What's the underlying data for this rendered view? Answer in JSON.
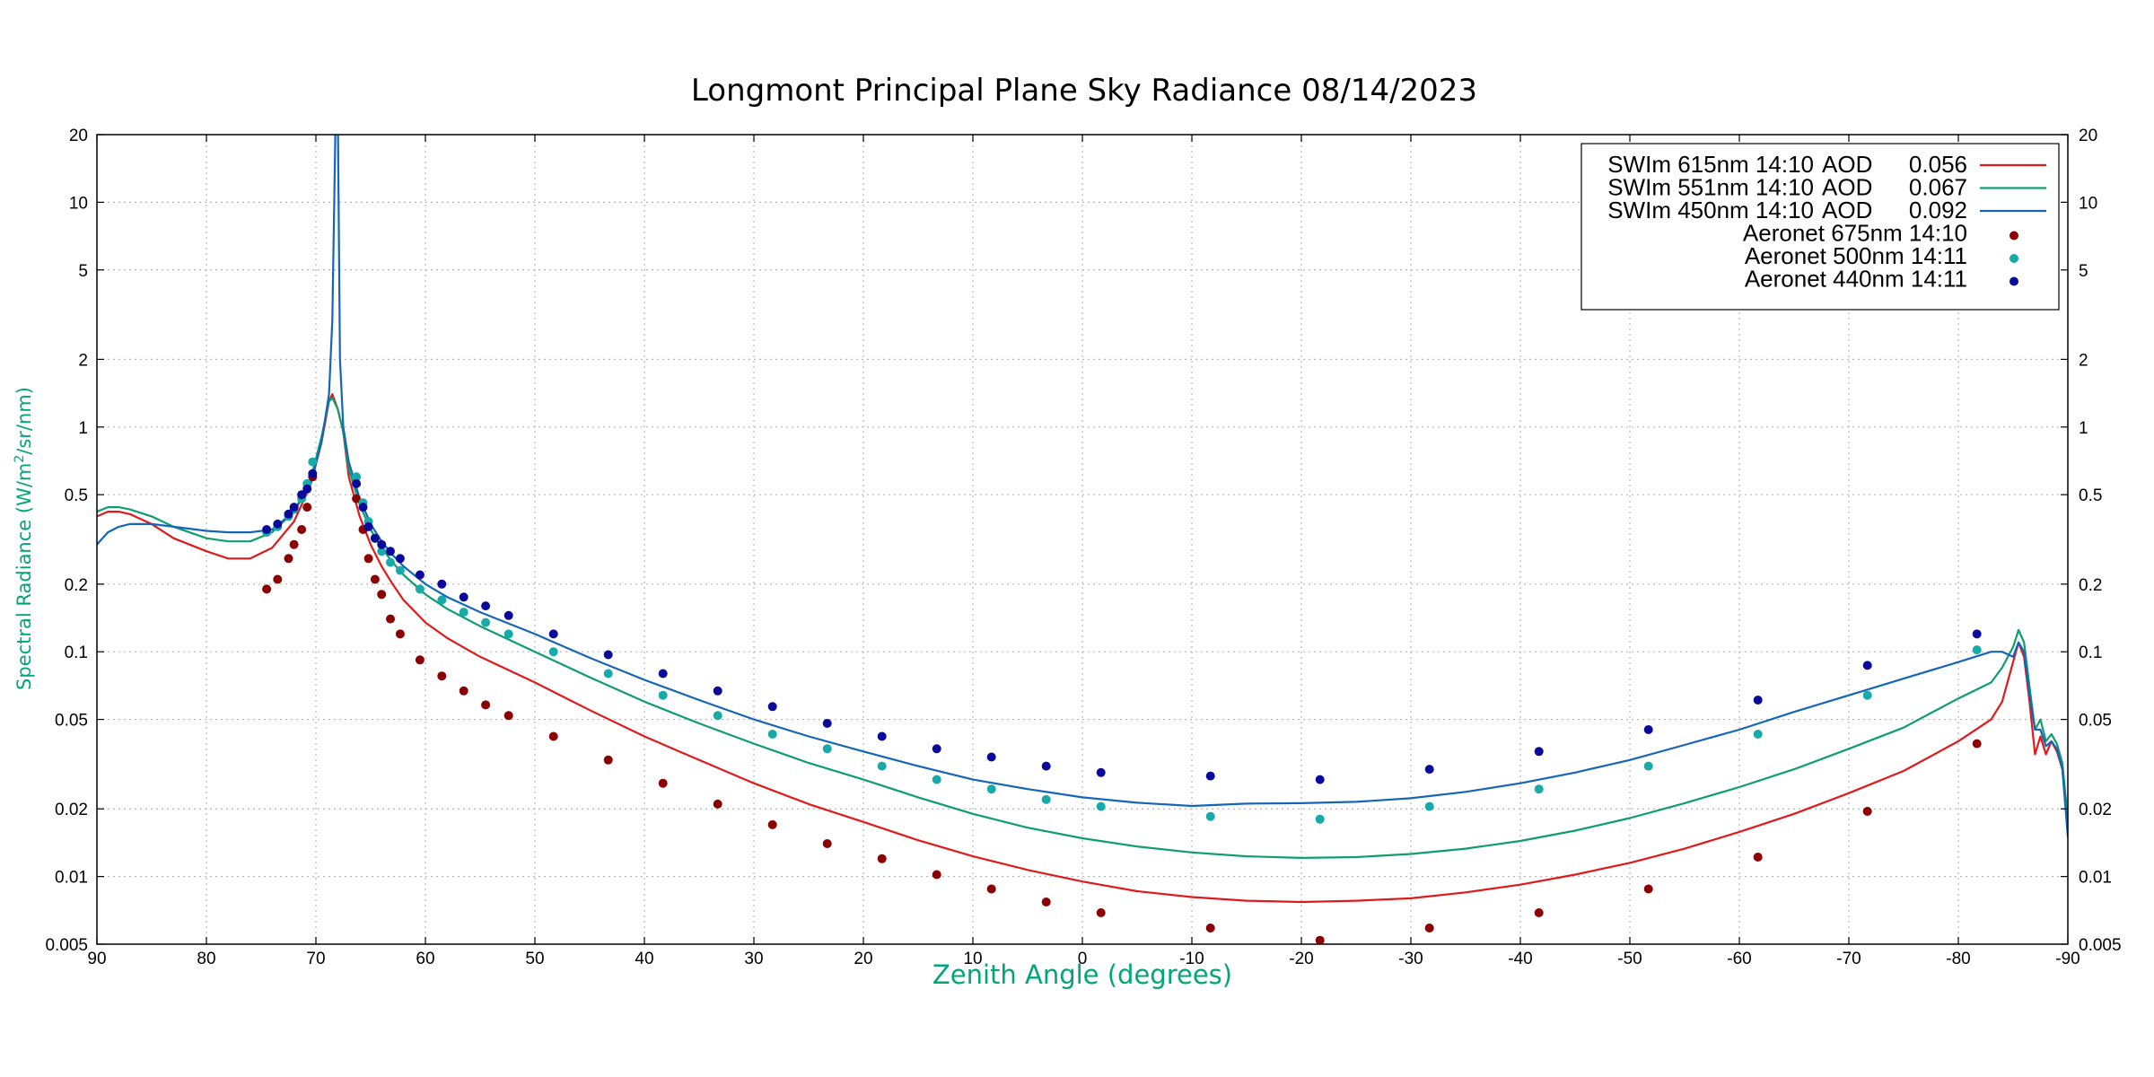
{
  "chart_data": {
    "type": "line",
    "title": "Longmont Principal Plane Sky Radiance 08/14/2023",
    "xlabel": "Zenith Angle (degrees)",
    "ylabel_main": "Spectral Radiance (W/m",
    "ylabel_sup": "2",
    "ylabel_tail": "/sr/nm)",
    "xlim": [
      90,
      -90
    ],
    "ylim": [
      0.005,
      20
    ],
    "yscale": "log",
    "grid": true,
    "legend_position": "top-right",
    "label_color": "#00a67a",
    "x_ticks": [
      90,
      80,
      70,
      60,
      50,
      40,
      30,
      20,
      10,
      0,
      -10,
      -20,
      -30,
      -40,
      -50,
      -60,
      -70,
      -80,
      -90
    ],
    "x_tick_labels": [
      "90",
      "80",
      "70",
      "60",
      "50",
      "40",
      "30",
      "20",
      "10",
      "0",
      "-10",
      "-20",
      "-30",
      "-40",
      "-50",
      "-60",
      "-70",
      "-80",
      "-90"
    ],
    "y_ticks": [
      0.005,
      0.01,
      0.02,
      0.05,
      0.1,
      0.2,
      0.5,
      1,
      2,
      5,
      10,
      20
    ],
    "y_tick_labels": [
      "0.005",
      "0.01",
      "0.02",
      "0.05",
      "0.1",
      "0.2",
      "0.5",
      "1",
      "2",
      "5",
      "10",
      "20"
    ],
    "series": [
      {
        "name": "SWIm 615nm 14:10",
        "aod_label": "AOD",
        "aod": "0.056",
        "kind": "line",
        "color": "#e01a1a",
        "x": [
          90,
          89,
          88,
          87,
          85,
          83,
          80,
          78,
          76,
          74,
          72,
          70.5,
          69.5,
          68.8,
          68.5,
          68.0,
          67.5,
          67,
          66,
          65,
          64,
          63,
          62,
          60,
          58,
          55,
          50,
          45,
          40,
          35,
          30,
          25,
          20,
          15,
          10,
          5,
          0,
          -5,
          -10,
          -15,
          -20,
          -25,
          -30,
          -35,
          -40,
          -45,
          -50,
          -55,
          -60,
          -65,
          -70,
          -75,
          -80,
          -83,
          -84,
          -85,
          -85.5,
          -86,
          -86.5,
          -87,
          -87.5,
          -88,
          -88.5,
          -89,
          -89.5,
          -90
        ],
        "y": [
          0.4,
          0.42,
          0.42,
          0.41,
          0.37,
          0.32,
          0.28,
          0.26,
          0.26,
          0.29,
          0.38,
          0.55,
          0.85,
          1.3,
          1.4,
          1.2,
          0.95,
          0.6,
          0.4,
          0.3,
          0.24,
          0.2,
          0.17,
          0.135,
          0.115,
          0.095,
          0.073,
          0.055,
          0.042,
          0.033,
          0.026,
          0.021,
          0.0175,
          0.0145,
          0.0123,
          0.0107,
          0.0095,
          0.0086,
          0.0081,
          0.0078,
          0.0077,
          0.0078,
          0.008,
          0.0085,
          0.0092,
          0.0102,
          0.0115,
          0.0133,
          0.0158,
          0.019,
          0.0235,
          0.0295,
          0.04,
          0.05,
          0.06,
          0.09,
          0.11,
          0.095,
          0.06,
          0.035,
          0.042,
          0.035,
          0.04,
          0.036,
          0.03,
          0.018
        ]
      },
      {
        "name": "SWIm 551nm 14:10",
        "aod_label": "AOD",
        "aod": "0.067",
        "kind": "line",
        "color": "#0e9e6e",
        "x": [
          90,
          89,
          88,
          87,
          85,
          83,
          80,
          78,
          76,
          74,
          72,
          70.5,
          69.5,
          68.8,
          68.5,
          68.0,
          67.5,
          67,
          66,
          65,
          64,
          63,
          62,
          60,
          58,
          55,
          50,
          45,
          40,
          35,
          30,
          25,
          20,
          15,
          10,
          5,
          0,
          -5,
          -10,
          -15,
          -20,
          -25,
          -30,
          -35,
          -40,
          -45,
          -50,
          -55,
          -60,
          -65,
          -70,
          -75,
          -80,
          -83,
          -84,
          -85,
          -85.5,
          -86,
          -86.5,
          -87,
          -87.5,
          -88,
          -88.5,
          -89,
          -89.5,
          -90
        ],
        "y": [
          0.42,
          0.44,
          0.44,
          0.43,
          0.4,
          0.36,
          0.32,
          0.31,
          0.31,
          0.34,
          0.42,
          0.58,
          0.9,
          1.3,
          1.35,
          1.2,
          0.95,
          0.65,
          0.45,
          0.35,
          0.29,
          0.25,
          0.22,
          0.18,
          0.155,
          0.13,
          0.1,
          0.077,
          0.06,
          0.048,
          0.039,
          0.032,
          0.027,
          0.0225,
          0.019,
          0.0165,
          0.0148,
          0.0136,
          0.0128,
          0.0123,
          0.0121,
          0.0122,
          0.0126,
          0.0133,
          0.0144,
          0.016,
          0.0182,
          0.0212,
          0.025,
          0.03,
          0.037,
          0.046,
          0.062,
          0.073,
          0.085,
          0.105,
          0.125,
          0.11,
          0.07,
          0.045,
          0.05,
          0.04,
          0.043,
          0.039,
          0.032,
          0.018
        ]
      },
      {
        "name": "SWIm 450nm 14:10",
        "aod_label": "AOD",
        "aod": "0.092",
        "kind": "line",
        "color": "#1565b8",
        "x": [
          90,
          89,
          88,
          87,
          85,
          83,
          80,
          78,
          76,
          74,
          72,
          70.5,
          69.5,
          68.8,
          68.5,
          68.2,
          68.0,
          67.8,
          67.5,
          67,
          66,
          65,
          64,
          63,
          62,
          60,
          58,
          55,
          50,
          45,
          40,
          35,
          30,
          25,
          20,
          15,
          10,
          5,
          0,
          -5,
          -10,
          -15,
          -20,
          -25,
          -30,
          -35,
          -40,
          -45,
          -50,
          -55,
          -60,
          -65,
          -70,
          -75,
          -80,
          -83,
          -84,
          -85,
          -85.5,
          -86,
          -86.5,
          -87,
          -87.5,
          -88,
          -88.5,
          -89,
          -89.5,
          -90
        ],
        "y": [
          0.3,
          0.34,
          0.36,
          0.37,
          0.37,
          0.36,
          0.345,
          0.34,
          0.34,
          0.35,
          0.42,
          0.56,
          0.85,
          1.4,
          3.0,
          25,
          25,
          2.0,
          1.0,
          0.7,
          0.48,
          0.37,
          0.31,
          0.27,
          0.24,
          0.2,
          0.175,
          0.15,
          0.12,
          0.094,
          0.075,
          0.061,
          0.05,
          0.042,
          0.036,
          0.031,
          0.027,
          0.0245,
          0.0225,
          0.0213,
          0.0206,
          0.0211,
          0.0212,
          0.0215,
          0.0223,
          0.0238,
          0.026,
          0.029,
          0.033,
          0.0385,
          0.045,
          0.054,
          0.064,
          0.076,
          0.09,
          0.1,
          0.1,
          0.095,
          0.11,
          0.1,
          0.065,
          0.045,
          0.045,
          0.038,
          0.04,
          0.037,
          0.03,
          0.015
        ]
      },
      {
        "name": "Aeronet 675nm 14:10",
        "kind": "scatter",
        "color": "#8b0000",
        "x": [
          74.5,
          73.5,
          72.5,
          72,
          71.3,
          70.8,
          70.3,
          66.3,
          65.7,
          65.2,
          64.6,
          64,
          63.2,
          62.3,
          60.5,
          58.5,
          56.5,
          54.5,
          52.4,
          48.3,
          43.3,
          38.3,
          33.3,
          28.3,
          23.3,
          18.3,
          13.3,
          8.3,
          3.3,
          -1.7,
          -11.7,
          -21.7,
          -31.7,
          -41.7,
          -51.7,
          -61.7,
          -71.7,
          -81.7
        ],
        "y": [
          0.19,
          0.21,
          0.26,
          0.3,
          0.35,
          0.44,
          0.6,
          0.48,
          0.35,
          0.26,
          0.21,
          0.18,
          0.14,
          0.12,
          0.092,
          0.078,
          0.067,
          0.058,
          0.052,
          0.042,
          0.033,
          0.026,
          0.021,
          0.017,
          0.014,
          0.012,
          0.0102,
          0.0088,
          0.0077,
          0.0069,
          0.0059,
          0.0052,
          0.0059,
          0.0069,
          0.0088,
          0.0122,
          0.0195,
          0.039
        ]
      },
      {
        "name": "Aeronet 500nm 14:11",
        "kind": "scatter",
        "color": "#17aaa8",
        "x": [
          74.5,
          73.5,
          72.5,
          72,
          71.3,
          70.8,
          70.3,
          66.3,
          65.7,
          65.2,
          64.6,
          64,
          63.2,
          62.3,
          60.5,
          58.5,
          56.5,
          54.5,
          52.4,
          48.3,
          43.3,
          38.3,
          33.3,
          28.3,
          23.3,
          18.3,
          13.3,
          8.3,
          3.3,
          -1.7,
          -11.7,
          -21.7,
          -31.7,
          -41.7,
          -51.7,
          -61.7,
          -71.7,
          -81.7
        ],
        "y": [
          0.34,
          0.36,
          0.4,
          0.43,
          0.48,
          0.56,
          0.7,
          0.6,
          0.46,
          0.38,
          0.32,
          0.28,
          0.25,
          0.23,
          0.19,
          0.17,
          0.15,
          0.135,
          0.12,
          0.1,
          0.08,
          0.064,
          0.052,
          0.043,
          0.037,
          0.031,
          0.027,
          0.0245,
          0.022,
          0.0205,
          0.0185,
          0.018,
          0.0205,
          0.0245,
          0.031,
          0.043,
          0.064,
          0.102
        ]
      },
      {
        "name": "Aeronet 440nm 14:11",
        "kind": "scatter",
        "color": "#0a0a9a",
        "x": [
          74.5,
          73.5,
          72.5,
          72,
          71.3,
          70.8,
          70.3,
          66.3,
          65.7,
          65.2,
          64.6,
          64,
          63.2,
          62.3,
          60.5,
          58.5,
          56.5,
          54.5,
          52.4,
          48.3,
          43.3,
          38.3,
          33.3,
          28.3,
          23.3,
          18.3,
          13.3,
          8.3,
          3.3,
          -1.7,
          -11.7,
          -21.7,
          -31.7,
          -41.7,
          -51.7,
          -61.7,
          -71.7,
          -81.7
        ],
        "y": [
          0.35,
          0.37,
          0.41,
          0.44,
          0.5,
          0.53,
          0.62,
          0.56,
          0.44,
          0.36,
          0.32,
          0.3,
          0.28,
          0.26,
          0.22,
          0.2,
          0.175,
          0.16,
          0.145,
          0.12,
          0.097,
          0.08,
          0.067,
          0.057,
          0.048,
          0.042,
          0.037,
          0.034,
          0.031,
          0.029,
          0.028,
          0.027,
          0.03,
          0.036,
          0.045,
          0.061,
          0.087,
          0.12
        ]
      }
    ]
  }
}
